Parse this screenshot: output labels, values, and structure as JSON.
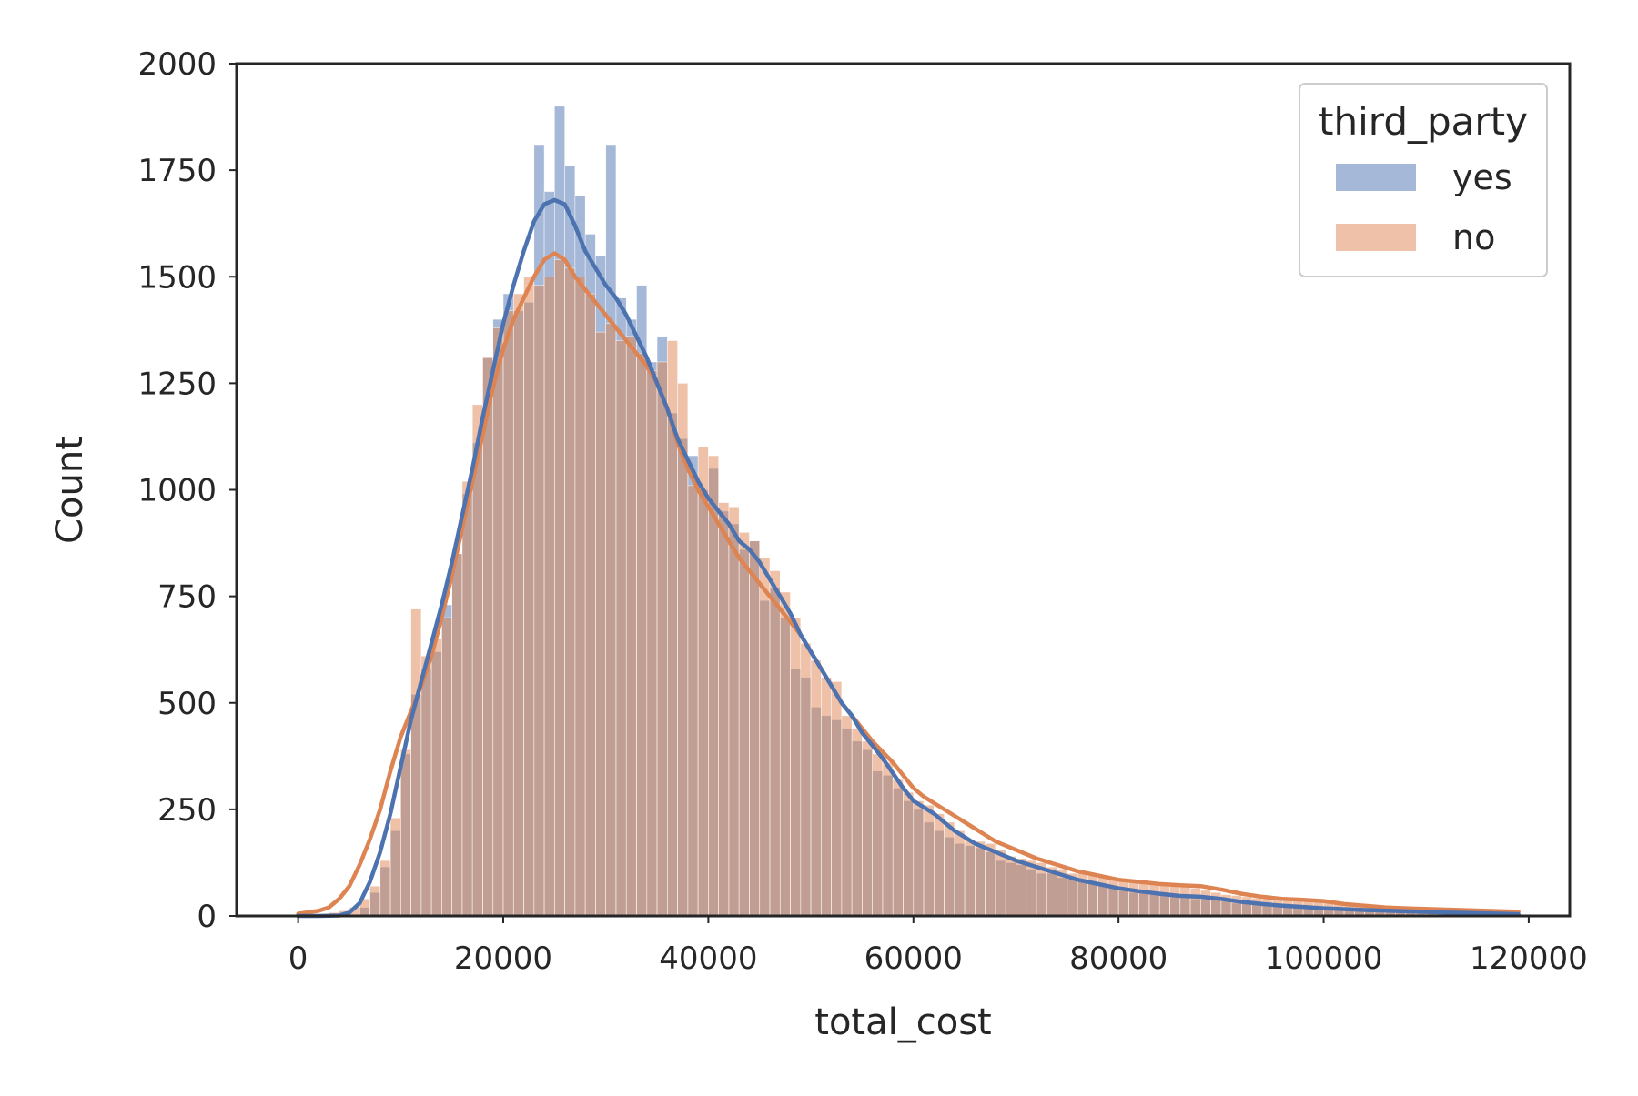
{
  "chart_data": {
    "type": "histogram",
    "title": "",
    "xlabel": "total_cost",
    "ylabel": "Count",
    "xlim": [
      -6000,
      124000
    ],
    "ylim": [
      0,
      2000
    ],
    "x_ticks": [
      0,
      20000,
      40000,
      60000,
      80000,
      100000,
      120000
    ],
    "y_ticks": [
      0,
      250,
      500,
      750,
      1000,
      1250,
      1500,
      1750,
      2000
    ],
    "bin_start": 0,
    "bin_width": 1000,
    "grid": false,
    "legend": {
      "title": "third_party",
      "position": "top-right"
    },
    "series": [
      {
        "name": "yes",
        "color": "#4c72b0",
        "kde_color": "#4c72b0",
        "counts": [
          0,
          0,
          0,
          0,
          0,
          2,
          20,
          55,
          115,
          200,
          380,
          520,
          580,
          620,
          730,
          850,
          990,
          1110,
          1310,
          1400,
          1460,
          1420,
          1440,
          1810,
          1700,
          1900,
          1760,
          1690,
          1600,
          1550,
          1810,
          1450,
          1400,
          1480,
          1300,
          1360,
          1180,
          1120,
          1080,
          1000,
          1050,
          950,
          920,
          860,
          880,
          740,
          770,
          700,
          580,
          560,
          490,
          470,
          460,
          440,
          410,
          390,
          340,
          330,
          300,
          270,
          250,
          220,
          200,
          185,
          170,
          165,
          160,
          150,
          130,
          125,
          120,
          110,
          100,
          100,
          90,
          85,
          80,
          75,
          70,
          65,
          60,
          55,
          55,
          50,
          50,
          45,
          42,
          40,
          40,
          38,
          35,
          30,
          30,
          28,
          25,
          25,
          22,
          20,
          20,
          18,
          18,
          16,
          15,
          14,
          13,
          12,
          11,
          10,
          9,
          8,
          8,
          7,
          6,
          6,
          5,
          5,
          4,
          4,
          4
        ],
        "kde": [
          [
            0,
            0
          ],
          [
            2000,
            0
          ],
          [
            4000,
            1
          ],
          [
            5000,
            8
          ],
          [
            6000,
            30
          ],
          [
            7000,
            80
          ],
          [
            8000,
            150
          ],
          [
            9000,
            240
          ],
          [
            10000,
            350
          ],
          [
            11000,
            460
          ],
          [
            12000,
            550
          ],
          [
            13000,
            640
          ],
          [
            14000,
            730
          ],
          [
            15000,
            830
          ],
          [
            16000,
            940
          ],
          [
            17000,
            1050
          ],
          [
            18000,
            1170
          ],
          [
            19000,
            1280
          ],
          [
            20000,
            1390
          ],
          [
            21000,
            1480
          ],
          [
            22000,
            1560
          ],
          [
            23000,
            1630
          ],
          [
            24000,
            1670
          ],
          [
            25000,
            1680
          ],
          [
            26000,
            1670
          ],
          [
            27000,
            1620
          ],
          [
            28000,
            1560
          ],
          [
            29000,
            1520
          ],
          [
            30000,
            1480
          ],
          [
            31000,
            1450
          ],
          [
            32000,
            1410
          ],
          [
            33000,
            1360
          ],
          [
            34000,
            1310
          ],
          [
            35000,
            1250
          ],
          [
            36000,
            1190
          ],
          [
            37000,
            1120
          ],
          [
            38000,
            1070
          ],
          [
            39000,
            1020
          ],
          [
            40000,
            980
          ],
          [
            41000,
            950
          ],
          [
            42000,
            920
          ],
          [
            43000,
            880
          ],
          [
            44000,
            860
          ],
          [
            45000,
            830
          ],
          [
            46000,
            790
          ],
          [
            47000,
            750
          ],
          [
            48000,
            710
          ],
          [
            49000,
            660
          ],
          [
            50000,
            620
          ],
          [
            51000,
            580
          ],
          [
            52000,
            540
          ],
          [
            53000,
            500
          ],
          [
            54000,
            470
          ],
          [
            55000,
            430
          ],
          [
            56000,
            400
          ],
          [
            57000,
            370
          ],
          [
            58000,
            335
          ],
          [
            59000,
            300
          ],
          [
            60000,
            270
          ],
          [
            61000,
            255
          ],
          [
            62000,
            240
          ],
          [
            63000,
            220
          ],
          [
            64000,
            200
          ],
          [
            65000,
            185
          ],
          [
            66000,
            170
          ],
          [
            67000,
            160
          ],
          [
            68000,
            150
          ],
          [
            69000,
            140
          ],
          [
            70000,
            130
          ],
          [
            72000,
            115
          ],
          [
            74000,
            100
          ],
          [
            76000,
            85
          ],
          [
            78000,
            75
          ],
          [
            80000,
            65
          ],
          [
            82000,
            58
          ],
          [
            84000,
            52
          ],
          [
            86000,
            47
          ],
          [
            88000,
            45
          ],
          [
            90000,
            40
          ],
          [
            92000,
            33
          ],
          [
            94000,
            28
          ],
          [
            96000,
            24
          ],
          [
            98000,
            21
          ],
          [
            100000,
            18
          ],
          [
            104000,
            14
          ],
          [
            108000,
            11
          ],
          [
            112000,
            8
          ],
          [
            116000,
            6
          ],
          [
            119000,
            4
          ]
        ]
      },
      {
        "name": "no",
        "color": "#dd8452",
        "kde_color": "#dd8452",
        "counts": [
          2,
          3,
          5,
          8,
          12,
          20,
          40,
          70,
          130,
          230,
          390,
          720,
          610,
          650,
          700,
          850,
          1020,
          1200,
          1310,
          1380,
          1420,
          1460,
          1500,
          1480,
          1500,
          1540,
          1520,
          1500,
          1460,
          1370,
          1390,
          1350,
          1360,
          1320,
          1280,
          1300,
          1350,
          1250,
          1010,
          1100,
          1080,
          970,
          960,
          900,
          880,
          840,
          810,
          760,
          700,
          640,
          600,
          560,
          550,
          470,
          440,
          410,
          380,
          360,
          320,
          290,
          270,
          260,
          240,
          220,
          200,
          180,
          175,
          170,
          155,
          140,
          135,
          130,
          125,
          115,
          110,
          100,
          100,
          95,
          95,
          90,
          85,
          85,
          80,
          80,
          78,
          75,
          70,
          65,
          60,
          55,
          50,
          48,
          45,
          42,
          40,
          38,
          36,
          35,
          34,
          33,
          32,
          30,
          28,
          26,
          25,
          24,
          23,
          22,
          21,
          20,
          19,
          18,
          17,
          16,
          15,
          14,
          13,
          12
        ],
        "kde": [
          [
            0,
            5
          ],
          [
            2000,
            12
          ],
          [
            3000,
            20
          ],
          [
            4000,
            40
          ],
          [
            5000,
            70
          ],
          [
            6000,
            120
          ],
          [
            7000,
            180
          ],
          [
            8000,
            250
          ],
          [
            9000,
            340
          ],
          [
            10000,
            420
          ],
          [
            11000,
            480
          ],
          [
            12000,
            540
          ],
          [
            13000,
            610
          ],
          [
            14000,
            700
          ],
          [
            15000,
            800
          ],
          [
            16000,
            910
          ],
          [
            17000,
            1020
          ],
          [
            18000,
            1130
          ],
          [
            19000,
            1240
          ],
          [
            20000,
            1330
          ],
          [
            21000,
            1400
          ],
          [
            22000,
            1450
          ],
          [
            23000,
            1500
          ],
          [
            24000,
            1540
          ],
          [
            25000,
            1555
          ],
          [
            26000,
            1540
          ],
          [
            27000,
            1500
          ],
          [
            28000,
            1470
          ],
          [
            29000,
            1440
          ],
          [
            30000,
            1410
          ],
          [
            31000,
            1380
          ],
          [
            32000,
            1350
          ],
          [
            33000,
            1320
          ],
          [
            34000,
            1290
          ],
          [
            35000,
            1250
          ],
          [
            36000,
            1190
          ],
          [
            37000,
            1110
          ],
          [
            38000,
            1050
          ],
          [
            39000,
            1000
          ],
          [
            40000,
            960
          ],
          [
            41000,
            920
          ],
          [
            42000,
            880
          ],
          [
            43000,
            840
          ],
          [
            44000,
            810
          ],
          [
            45000,
            780
          ],
          [
            46000,
            750
          ],
          [
            47000,
            720
          ],
          [
            48000,
            690
          ],
          [
            49000,
            660
          ],
          [
            50000,
            620
          ],
          [
            51000,
            580
          ],
          [
            52000,
            540
          ],
          [
            53000,
            500
          ],
          [
            54000,
            470
          ],
          [
            55000,
            440
          ],
          [
            56000,
            410
          ],
          [
            57000,
            385
          ],
          [
            58000,
            360
          ],
          [
            59000,
            330
          ],
          [
            60000,
            300
          ],
          [
            61000,
            280
          ],
          [
            62000,
            265
          ],
          [
            63000,
            250
          ],
          [
            64000,
            235
          ],
          [
            65000,
            220
          ],
          [
            66000,
            205
          ],
          [
            67000,
            190
          ],
          [
            68000,
            175
          ],
          [
            69000,
            165
          ],
          [
            70000,
            155
          ],
          [
            72000,
            135
          ],
          [
            74000,
            120
          ],
          [
            76000,
            105
          ],
          [
            78000,
            95
          ],
          [
            80000,
            85
          ],
          [
            82000,
            80
          ],
          [
            84000,
            75
          ],
          [
            86000,
            72
          ],
          [
            88000,
            70
          ],
          [
            90000,
            62
          ],
          [
            92000,
            52
          ],
          [
            94000,
            45
          ],
          [
            96000,
            40
          ],
          [
            98000,
            38
          ],
          [
            100000,
            35
          ],
          [
            102000,
            28
          ],
          [
            104000,
            24
          ],
          [
            106000,
            20
          ],
          [
            108000,
            18
          ],
          [
            112000,
            15
          ],
          [
            116000,
            12
          ],
          [
            119000,
            10
          ]
        ]
      }
    ]
  }
}
